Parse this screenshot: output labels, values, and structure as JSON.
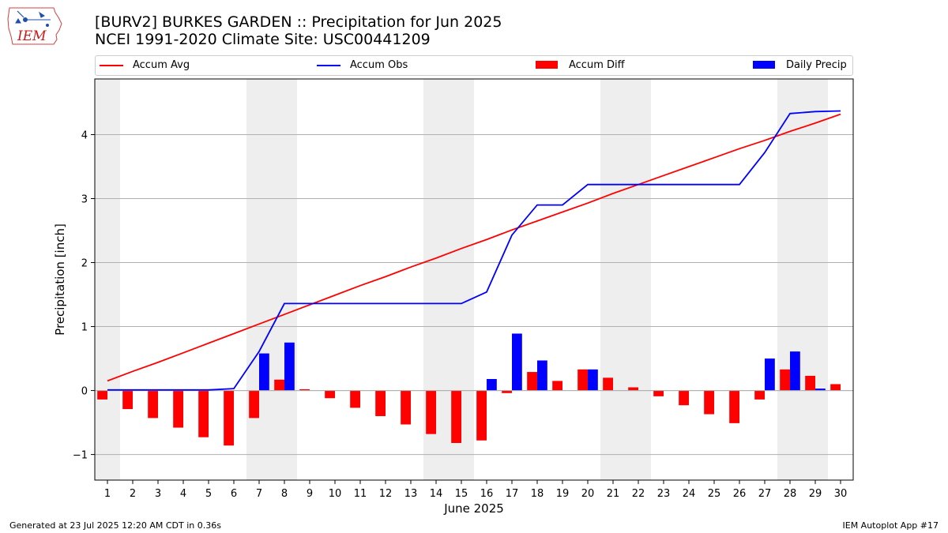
{
  "header": {
    "title_line1": "[BURV2] BURKES GARDEN :: Precipitation for Jun 2025",
    "title_line2": "NCEI 1991-2020 Climate Site: USC00441209"
  },
  "logo": {
    "text": "IEM"
  },
  "legend": {
    "items": [
      {
        "label": "Accum Avg",
        "kind": "line",
        "color": "#ff0000"
      },
      {
        "label": "Accum Obs",
        "kind": "line",
        "color": "#0000ff"
      },
      {
        "label": "Accum Diff",
        "kind": "bar",
        "color": "#ff0000"
      },
      {
        "label": "Daily Precip",
        "kind": "bar",
        "color": "#0000ff"
      }
    ]
  },
  "footer": {
    "left": "Generated at 23 Jul 2025 12:20 AM CDT in 0.36s",
    "right": "IEM Autoplot App #17"
  },
  "chart_data": {
    "type": "bar",
    "xlabel": "June 2025",
    "ylabel": "Precipitation [inch]",
    "x": [
      1,
      2,
      3,
      4,
      5,
      6,
      7,
      8,
      9,
      10,
      11,
      12,
      13,
      14,
      15,
      16,
      17,
      18,
      19,
      20,
      21,
      22,
      23,
      24,
      25,
      26,
      27,
      28,
      29,
      30
    ],
    "xlim": [
      0.5,
      30.5
    ],
    "ylim": [
      -1.4,
      4.87
    ],
    "yticks": [
      -1,
      0,
      1,
      2,
      3,
      4
    ],
    "ytick_labels": [
      "−1",
      "0",
      "1",
      "2",
      "3",
      "4"
    ],
    "grid": "horizontal",
    "weekend_shading": [
      [
        0.5,
        1.5
      ],
      [
        6.5,
        8.5
      ],
      [
        13.5,
        15.5
      ],
      [
        20.5,
        22.5
      ],
      [
        27.5,
        29.5
      ]
    ],
    "shading_color": "#eeeeee",
    "series": [
      {
        "name": "Accum Avg",
        "kind": "line",
        "color": "#ff0000",
        "values": [
          0.15,
          0.3,
          0.44,
          0.59,
          0.74,
          0.89,
          1.04,
          1.19,
          1.34,
          1.49,
          1.64,
          1.78,
          1.93,
          2.07,
          2.22,
          2.36,
          2.51,
          2.65,
          2.79,
          2.93,
          3.08,
          3.22,
          3.36,
          3.5,
          3.64,
          3.78,
          3.91,
          4.05,
          4.18,
          4.32
        ]
      },
      {
        "name": "Accum Obs",
        "kind": "line",
        "color": "#0000ff",
        "values": [
          0.01,
          0.01,
          0.01,
          0.01,
          0.01,
          0.03,
          0.61,
          1.36,
          1.36,
          1.36,
          1.36,
          1.36,
          1.36,
          1.36,
          1.36,
          1.54,
          2.43,
          2.9,
          2.9,
          3.22,
          3.22,
          3.22,
          3.22,
          3.22,
          3.22,
          3.22,
          3.72,
          4.33,
          4.36,
          4.37
        ]
      },
      {
        "name": "Accum Diff",
        "kind": "bar",
        "color": "#ff0000",
        "values": [
          -0.14,
          -0.29,
          -0.43,
          -0.58,
          -0.73,
          -0.86,
          -0.43,
          0.17,
          0.02,
          -0.12,
          -0.27,
          -0.4,
          -0.53,
          -0.68,
          -0.82,
          -0.78,
          -0.04,
          0.29,
          0.15,
          0.33,
          0.2,
          0.05,
          -0.09,
          -0.23,
          -0.37,
          -0.51,
          -0.14,
          0.33,
          0.23,
          0.1
        ]
      },
      {
        "name": "Daily Precip",
        "kind": "bar",
        "color": "#0000ff",
        "values": [
          0,
          0,
          0,
          0,
          0,
          0,
          0.58,
          0.75,
          0,
          0,
          0,
          0,
          0,
          0,
          0,
          0.18,
          0.89,
          0.47,
          0,
          0.33,
          0,
          0,
          0,
          0,
          0,
          0,
          0.5,
          0.61,
          0.03,
          0
        ]
      }
    ]
  }
}
